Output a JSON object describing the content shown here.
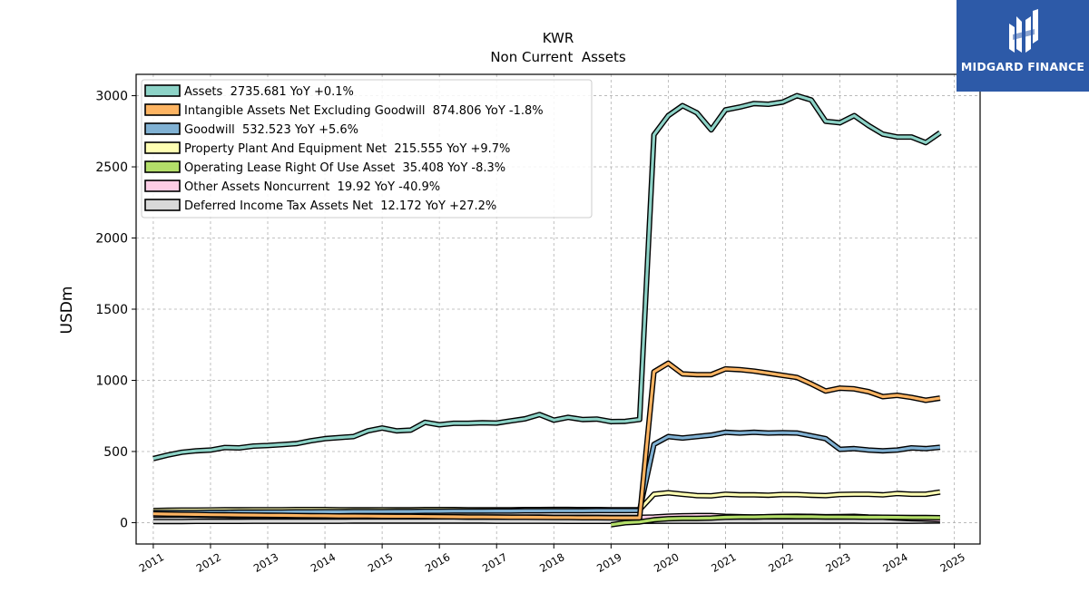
{
  "logo": {
    "text": "MIDGARD FINANCE",
    "background": "#2d5aa8"
  },
  "chart_data": {
    "type": "line",
    "title": "KWR",
    "subtitle": "Non Current  Assets",
    "xlabel": "",
    "ylabel": "USDm",
    "xlim": [
      2010.7,
      2025.45
    ],
    "ylim": [
      -150,
      3150
    ],
    "grid": true,
    "legend_position": "top-left",
    "x_ticks": [
      "2011",
      "2012",
      "2013",
      "2014",
      "2015",
      "2016",
      "2017",
      "2018",
      "2019",
      "2020",
      "2021",
      "2022",
      "2023",
      "2024",
      "2025"
    ],
    "y_ticks": [
      0,
      500,
      1000,
      1500,
      2000,
      2500,
      3000
    ],
    "series": [
      {
        "name": "Assets  2735.681 YoY +0.1%",
        "color": "#8dd3c7",
        "x": [
          2011.0,
          2011.25,
          2011.5,
          2011.75,
          2012.0,
          2012.25,
          2012.5,
          2012.75,
          2013.0,
          2013.25,
          2013.5,
          2013.75,
          2014.0,
          2014.25,
          2014.5,
          2014.75,
          2015.0,
          2015.25,
          2015.5,
          2015.75,
          2016.0,
          2016.25,
          2016.5,
          2016.75,
          2017.0,
          2017.25,
          2017.5,
          2017.75,
          2018.0,
          2018.25,
          2018.5,
          2018.75,
          2019.0,
          2019.25,
          2019.5,
          2019.75,
          2020.0,
          2020.25,
          2020.5,
          2020.75,
          2021.0,
          2021.25,
          2021.5,
          2021.75,
          2022.0,
          2022.25,
          2022.5,
          2022.75,
          2023.0,
          2023.25,
          2023.5,
          2023.75,
          2024.0,
          2024.25,
          2024.5,
          2024.75
        ],
        "values": [
          450,
          475,
          495,
          505,
          510,
          528,
          525,
          538,
          542,
          548,
          555,
          575,
          590,
          598,
          605,
          645,
          665,
          645,
          650,
          705,
          688,
          698,
          698,
          702,
          700,
          715,
          730,
          760,
          720,
          740,
          725,
          728,
          710,
          712,
          725,
          2725,
          2860,
          2930,
          2880,
          2760,
          2900,
          2920,
          2945,
          2940,
          2955,
          3000,
          2970,
          2820,
          2810,
          2860,
          2790,
          2730,
          2710,
          2710,
          2670,
          2740
        ]
      },
      {
        "name": "Intangible Assets Net Excluding Goodwill  874.806 YoY -1.8%",
        "color": "#fdb462",
        "x": [
          2011.0,
          2011.25,
          2011.5,
          2011.75,
          2012.0,
          2012.25,
          2012.5,
          2012.75,
          2013.0,
          2013.25,
          2013.5,
          2013.75,
          2014.0,
          2014.25,
          2014.5,
          2014.75,
          2015.0,
          2015.25,
          2015.5,
          2015.75,
          2016.0,
          2016.25,
          2016.5,
          2016.75,
          2017.0,
          2017.25,
          2017.5,
          2017.75,
          2018.0,
          2018.25,
          2018.5,
          2018.75,
          2019.0,
          2019.25,
          2019.5,
          2019.75,
          2020.0,
          2020.25,
          2020.5,
          2020.75,
          2021.0,
          2021.25,
          2021.5,
          2021.75,
          2022.0,
          2022.25,
          2022.5,
          2022.75,
          2023.0,
          2023.25,
          2023.5,
          2023.75,
          2024.0,
          2024.25,
          2024.5,
          2024.75
        ],
        "values": [
          62,
          60,
          59,
          58,
          56,
          55,
          54,
          53,
          52,
          51,
          50,
          49,
          48,
          47,
          47,
          46,
          45,
          44,
          44,
          43,
          42,
          41,
          40,
          40,
          39,
          38,
          38,
          37,
          36,
          36,
          35,
          35,
          34,
          34,
          34,
          1060,
          1120,
          1045,
          1040,
          1040,
          1080,
          1075,
          1065,
          1050,
          1035,
          1020,
          975,
          925,
          945,
          940,
          920,
          885,
          895,
          880,
          860,
          875
        ]
      },
      {
        "name": "Goodwill  532.523 YoY +5.6%",
        "color": "#80b1d3",
        "x": [
          2011.0,
          2011.25,
          2011.5,
          2011.75,
          2012.0,
          2012.25,
          2012.5,
          2012.75,
          2013.0,
          2013.25,
          2013.5,
          2013.75,
          2014.0,
          2014.25,
          2014.5,
          2014.75,
          2015.0,
          2015.25,
          2015.5,
          2015.75,
          2016.0,
          2016.25,
          2016.5,
          2016.75,
          2017.0,
          2017.25,
          2017.5,
          2017.75,
          2018.0,
          2018.25,
          2018.5,
          2018.75,
          2019.0,
          2019.25,
          2019.5,
          2019.75,
          2020.0,
          2020.25,
          2020.5,
          2020.75,
          2021.0,
          2021.25,
          2021.5,
          2021.75,
          2022.0,
          2022.25,
          2022.5,
          2022.75,
          2023.0,
          2023.25,
          2023.5,
          2023.75,
          2024.0,
          2024.25,
          2024.5,
          2024.75
        ],
        "values": [
          72,
          72,
          72,
          72,
          73,
          73,
          74,
          74,
          75,
          75,
          76,
          76,
          77,
          77,
          78,
          78,
          78,
          79,
          79,
          80,
          80,
          81,
          81,
          81,
          82,
          82,
          83,
          83,
          84,
          84,
          84,
          85,
          85,
          85,
          86,
          550,
          605,
          595,
          605,
          615,
          635,
          630,
          635,
          630,
          632,
          630,
          610,
          590,
          515,
          520,
          510,
          505,
          510,
          525,
          520,
          530
        ]
      },
      {
        "name": "Property Plant And Equipment Net  215.555 YoY +9.7%",
        "color": "#ffffb3",
        "x": [
          2011.0,
          2011.25,
          2011.5,
          2011.75,
          2012.0,
          2012.25,
          2012.5,
          2012.75,
          2013.0,
          2013.25,
          2013.5,
          2013.75,
          2014.0,
          2014.25,
          2014.5,
          2014.75,
          2015.0,
          2015.25,
          2015.5,
          2015.75,
          2016.0,
          2016.25,
          2016.5,
          2016.75,
          2017.0,
          2017.25,
          2017.5,
          2017.75,
          2018.0,
          2018.25,
          2018.5,
          2018.75,
          2019.0,
          2019.25,
          2019.5,
          2019.75,
          2020.0,
          2020.25,
          2020.5,
          2020.75,
          2021.0,
          2021.25,
          2021.5,
          2021.75,
          2022.0,
          2022.25,
          2022.5,
          2022.75,
          2023.0,
          2023.25,
          2023.5,
          2023.75,
          2024.0,
          2024.25,
          2024.5,
          2024.75
        ],
        "values": [
          85,
          87,
          88,
          88,
          89,
          90,
          90,
          91,
          91,
          91,
          92,
          92,
          92,
          91,
          90,
          90,
          91,
          90,
          90,
          92,
          92,
          92,
          91,
          90,
          91,
          91,
          92,
          92,
          93,
          93,
          92,
          92,
          91,
          91,
          91,
          200,
          210,
          200,
          190,
          188,
          200,
          195,
          195,
          193,
          198,
          197,
          193,
          190,
          198,
          200,
          200,
          195,
          205,
          200,
          200,
          215
        ]
      },
      {
        "name": "Operating Lease Right Of Use Asset  35.408 YoY -8.3%",
        "color": "#b3de69",
        "x": [
          2019.0,
          2019.25,
          2019.5,
          2019.75,
          2020.0,
          2020.25,
          2020.5,
          2020.75,
          2021.0,
          2021.25,
          2021.5,
          2021.75,
          2022.0,
          2022.25,
          2022.5,
          2022.75,
          2023.0,
          2023.25,
          2023.5,
          2023.75,
          2024.0,
          2024.25,
          2024.5,
          2024.75
        ],
        "values": [
          -15,
          0,
          5,
          20,
          28,
          30,
          30,
          32,
          38,
          40,
          40,
          42,
          43,
          42,
          42,
          40,
          40,
          39,
          38,
          38,
          37,
          36,
          36,
          35
        ]
      },
      {
        "name": "Other Assets Noncurrent  19.92 YoY -40.9%",
        "color": "#fccde5",
        "x": [
          2011.0,
          2011.25,
          2011.5,
          2011.75,
          2012.0,
          2012.25,
          2012.5,
          2012.75,
          2013.0,
          2013.25,
          2013.5,
          2013.75,
          2014.0,
          2014.25,
          2014.5,
          2014.75,
          2015.0,
          2015.25,
          2015.5,
          2015.75,
          2016.0,
          2016.25,
          2016.5,
          2016.75,
          2017.0,
          2017.25,
          2017.5,
          2017.75,
          2018.0,
          2018.25,
          2018.5,
          2018.75,
          2019.0,
          2019.25,
          2019.5,
          2019.75,
          2020.0,
          2020.25,
          2020.5,
          2020.75,
          2021.0,
          2021.25,
          2021.5,
          2021.75,
          2022.0,
          2022.25,
          2022.5,
          2022.75,
          2023.0,
          2023.25,
          2023.5,
          2023.75,
          2024.0,
          2024.25,
          2024.5,
          2024.75
        ],
        "values": [
          52,
          52,
          52,
          51,
          50,
          49,
          48,
          48,
          48,
          47,
          47,
          46,
          45,
          45,
          44,
          44,
          43,
          43,
          42,
          42,
          41,
          41,
          40,
          40,
          40,
          39,
          39,
          39,
          38,
          38,
          38,
          38,
          37,
          37,
          37,
          40,
          45,
          48,
          50,
          50,
          44,
          42,
          40,
          42,
          44,
          45,
          44,
          42,
          43,
          44,
          40,
          38,
          32,
          28,
          25,
          20
        ]
      },
      {
        "name": "Deferred Income Tax Assets Net  12.172 YoY +27.2%",
        "color": "#d9d9d9",
        "x": [
          2011.0,
          2011.25,
          2011.5,
          2011.75,
          2012.0,
          2012.25,
          2012.5,
          2012.75,
          2013.0,
          2013.25,
          2013.5,
          2013.75,
          2014.0,
          2014.25,
          2014.5,
          2014.75,
          2015.0,
          2015.25,
          2015.5,
          2015.75,
          2016.0,
          2016.25,
          2016.5,
          2016.75,
          2017.0,
          2017.25,
          2017.5,
          2017.75,
          2018.0,
          2018.25,
          2018.5,
          2018.75,
          2019.0,
          2019.25,
          2019.5,
          2019.75,
          2020.0,
          2020.25,
          2020.5,
          2020.75,
          2021.0,
          2021.25,
          2021.5,
          2021.75,
          2022.0,
          2022.25,
          2022.5,
          2022.75,
          2023.0,
          2023.25,
          2023.5,
          2023.75,
          2024.0,
          2024.25,
          2024.5,
          2024.75
        ],
        "values": [
          8,
          8,
          8,
          9,
          9,
          9,
          9,
          10,
          10,
          10,
          10,
          10,
          10,
          10,
          11,
          11,
          11,
          11,
          11,
          11,
          11,
          11,
          11,
          11,
          10,
          10,
          10,
          10,
          10,
          9,
          9,
          9,
          9,
          9,
          9,
          10,
          10,
          10,
          10,
          10,
          11,
          11,
          11,
          11,
          11,
          11,
          11,
          11,
          11,
          11,
          10,
          10,
          10,
          10,
          11,
          12
        ]
      }
    ]
  }
}
